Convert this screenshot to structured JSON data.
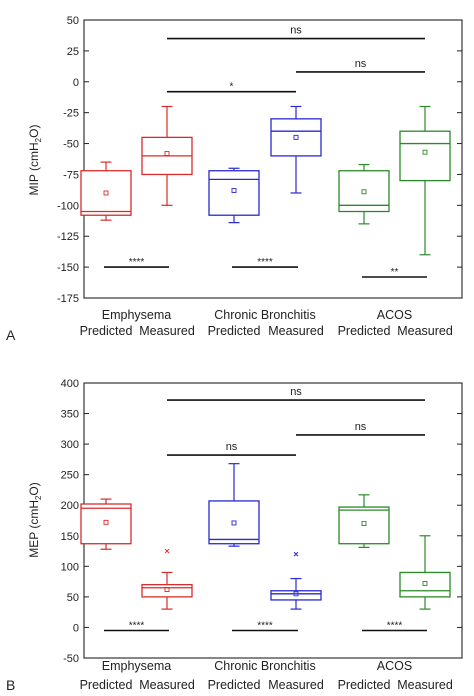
{
  "chart_data": [
    {
      "panel_label": "A",
      "type": "box",
      "ylabel_parts": [
        "MIP (cmH",
        "2",
        "O)"
      ],
      "ylim": [
        -175,
        50
      ],
      "yticks": [
        50,
        25,
        0,
        -25,
        -50,
        -75,
        -100,
        -125,
        -150,
        -175
      ],
      "group_labels": [
        "Emphysema",
        "Chronic Bronchitis",
        "ACOS"
      ],
      "sub_labels": [
        "Predicted",
        "Measured",
        "Predicted",
        "Measured",
        "Predicted",
        "Measured"
      ],
      "colors": [
        "#d92b2b",
        "#2a2ad0",
        "#2a8a2a"
      ],
      "boxes": [
        {
          "group": 0,
          "label": "Predicted",
          "whisker_low": -112,
          "q1": -108,
          "median": -105,
          "q3": -72,
          "whisker_high": -65,
          "mean": -90
        },
        {
          "group": 0,
          "label": "Measured",
          "whisker_low": -100,
          "q1": -75,
          "median": -60,
          "q3": -45,
          "whisker_high": -20,
          "mean": -58
        },
        {
          "group": 1,
          "label": "Predicted",
          "whisker_low": -114,
          "q1": -108,
          "median": -79,
          "q3": -72,
          "whisker_high": -70,
          "mean": -88
        },
        {
          "group": 1,
          "label": "Measured",
          "whisker_low": -90,
          "q1": -60,
          "median": -40,
          "q3": -30,
          "whisker_high": -20,
          "mean": -45
        },
        {
          "group": 2,
          "label": "Predicted",
          "whisker_low": -115,
          "q1": -105,
          "median": -100,
          "q3": -72,
          "whisker_high": -67,
          "mean": -89
        },
        {
          "group": 2,
          "label": "Measured",
          "whisker_low": -140,
          "q1": -80,
          "median": -50,
          "q3": -40,
          "whisker_high": -20,
          "mean": -57
        }
      ],
      "annotations": [
        {
          "text": "****",
          "from_box": 0,
          "to_box": 1,
          "y": -150
        },
        {
          "text": "****",
          "from_box": 2,
          "to_box": 3,
          "y": -150
        },
        {
          "text": "**",
          "from_box": 4,
          "to_box": 5,
          "y": -158
        },
        {
          "text": "*",
          "from_box": 1,
          "to_box": 3,
          "y": -8
        },
        {
          "text": "ns",
          "from_box": 3,
          "to_box": 5,
          "y": 8
        },
        {
          "text": "ns",
          "from_box": 1,
          "to_box": 5,
          "y": 35
        }
      ]
    },
    {
      "panel_label": "B",
      "type": "box",
      "ylabel_parts": [
        "MEP (cmH",
        "2",
        "O)"
      ],
      "ylim": [
        -50,
        400
      ],
      "yticks": [
        400,
        350,
        300,
        250,
        200,
        150,
        100,
        50,
        0,
        -50
      ],
      "group_labels": [
        "Emphysema",
        "Chronic Bronchitis",
        "ACOS"
      ],
      "sub_labels": [
        "Predicted",
        "Measured",
        "Predicted",
        "Measured",
        "Predicted",
        "Measured"
      ],
      "colors": [
        "#d92b2b",
        "#2a2ad0",
        "#2a8a2a"
      ],
      "boxes": [
        {
          "group": 0,
          "label": "Predicted",
          "whisker_low": 128,
          "q1": 137,
          "median": 195,
          "q3": 202,
          "whisker_high": 210,
          "mean": 172
        },
        {
          "group": 0,
          "label": "Measured",
          "whisker_low": 30,
          "q1": 50,
          "median": 65,
          "q3": 70,
          "whisker_high": 90,
          "mean": 62,
          "outlier": 125
        },
        {
          "group": 1,
          "label": "Predicted",
          "whisker_low": 133,
          "q1": 137,
          "median": 144,
          "q3": 207,
          "whisker_high": 268,
          "mean": 171
        },
        {
          "group": 1,
          "label": "Measured",
          "whisker_low": 30,
          "q1": 45,
          "median": 55,
          "q3": 60,
          "whisker_high": 80,
          "mean": 55,
          "outlier": 120
        },
        {
          "group": 2,
          "label": "Predicted",
          "whisker_low": 131,
          "q1": 137,
          "median": 192,
          "q3": 197,
          "whisker_high": 217,
          "mean": 170
        },
        {
          "group": 2,
          "label": "Measured",
          "whisker_low": 30,
          "q1": 50,
          "median": 60,
          "q3": 90,
          "whisker_high": 150,
          "mean": 72
        }
      ],
      "annotations": [
        {
          "text": "****",
          "from_box": 0,
          "to_box": 1,
          "y": -5
        },
        {
          "text": "****",
          "from_box": 2,
          "to_box": 3,
          "y": -5
        },
        {
          "text": "****",
          "from_box": 4,
          "to_box": 5,
          "y": -5
        },
        {
          "text": "ns",
          "from_box": 1,
          "to_box": 3,
          "y": 282
        },
        {
          "text": "ns",
          "from_box": 3,
          "to_box": 5,
          "y": 315
        },
        {
          "text": "ns",
          "from_box": 1,
          "to_box": 5,
          "y": 372
        }
      ]
    }
  ]
}
